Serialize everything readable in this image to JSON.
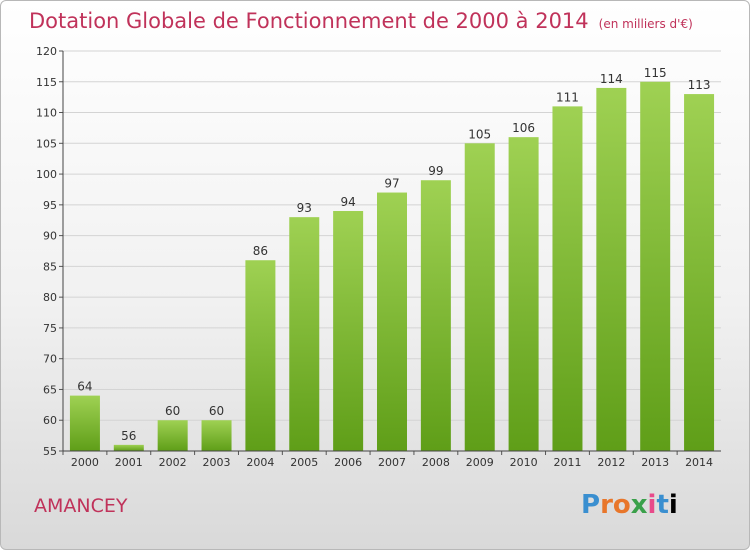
{
  "header": {
    "title": "Dotation Globale de Fonctionnement de 2000 à 2014",
    "unit": "(en milliers d'€)"
  },
  "footer": {
    "place": "AMANCEY",
    "logo": "Proxiti"
  },
  "colors": {
    "title": "#c0325a",
    "bar_top": "#9fd153",
    "bar_bottom": "#5f9e18"
  },
  "chart_data": {
    "type": "bar",
    "title": "Dotation Globale de Fonctionnement de 2000 à 2014",
    "subtitle": "(en milliers d'€)",
    "categories": [
      "2000",
      "2001",
      "2002",
      "2003",
      "2004",
      "2005",
      "2006",
      "2007",
      "2008",
      "2009",
      "2010",
      "2011",
      "2012",
      "2013",
      "2014"
    ],
    "values": [
      64,
      56,
      60,
      60,
      86,
      93,
      94,
      97,
      99,
      105,
      106,
      111,
      114,
      115,
      113
    ],
    "ylim": [
      55,
      120
    ],
    "yticks": [
      55,
      60,
      65,
      70,
      75,
      80,
      85,
      90,
      95,
      100,
      105,
      110,
      115,
      120
    ],
    "grid": true
  }
}
